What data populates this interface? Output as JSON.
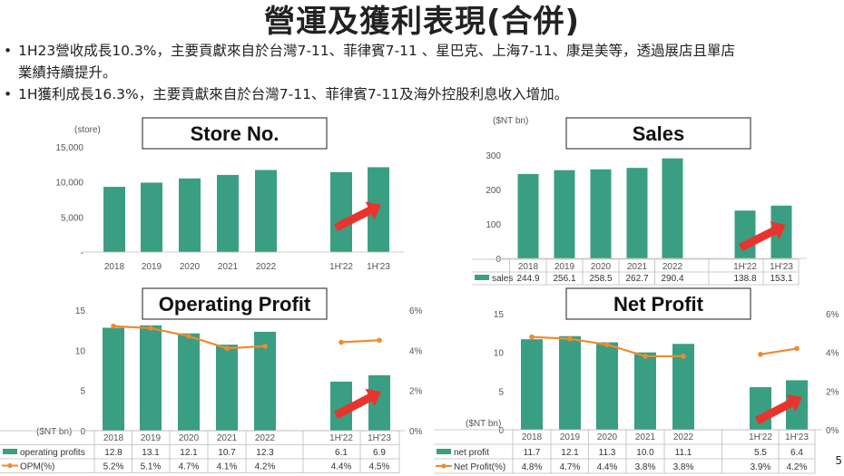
{
  "title": "營運及獲利表現(合併)",
  "bullets": [
    {
      "line1": "1H23營收成長10.3%，主要貢獻來自於台灣7-11、菲律賓7-11 、星巴克、上海7-11、康是美等，透過展店且單店",
      "line2": "業績持續提升。"
    },
    {
      "line1": "1H獲利成長16.3%，主要貢獻來自於台灣7-11、菲律賓7-11及海外控股利息收入增加。",
      "line2": ""
    }
  ],
  "page_number": "5",
  "colors": {
    "bar": "#3a9e83",
    "line": "#f08a30",
    "arrow": "#e8342c"
  },
  "chart_data": [
    {
      "id": "store",
      "type": "bar",
      "title": "Store No.",
      "unit_label": "(store)",
      "categories": [
        "2018",
        "2019",
        "2020",
        "2021",
        "2022",
        "1H'22",
        "1H'23"
      ],
      "values": [
        9300,
        9900,
        10500,
        11000,
        11700,
        11400,
        12100
      ],
      "ylim": [
        0,
        15000
      ],
      "y_ticks": [
        {
          "v": 15000,
          "label": "15,000"
        },
        {
          "v": 10000,
          "label": "10,000"
        },
        {
          "v": 5000,
          "label": "5,000"
        },
        {
          "v": 0,
          "label": "-"
        }
      ]
    },
    {
      "id": "sales",
      "type": "bar",
      "title": "Sales",
      "unit_label": "($NT bn)",
      "categories": [
        "2018",
        "2019",
        "2020",
        "2021",
        "2022",
        "1H'22",
        "1H'23"
      ],
      "values": [
        244.9,
        256.1,
        258.5,
        262.7,
        290.4,
        138.8,
        153.1
      ],
      "ylim": [
        0,
        300
      ],
      "y_ticks": [
        {
          "v": 300,
          "label": "300"
        },
        {
          "v": 200,
          "label": "200"
        },
        {
          "v": 100,
          "label": "100"
        },
        {
          "v": 0,
          "label": "0"
        }
      ],
      "table": [
        {
          "name": "sales",
          "values": [
            "244.9",
            "256.1",
            "258.5",
            "262.7",
            "290.4",
            "138.8",
            "153.1"
          ]
        }
      ]
    },
    {
      "id": "op",
      "type": "bar+line",
      "title": "Operating Profit",
      "unit_label": "($NT bn)",
      "categories": [
        "2018",
        "2019",
        "2020",
        "2021",
        "2022",
        "1H'22",
        "1H'23"
      ],
      "values": [
        12.8,
        13.1,
        12.1,
        10.7,
        12.3,
        6.1,
        6.9
      ],
      "ylim": [
        0,
        15
      ],
      "y_ticks": [
        {
          "v": 15,
          "label": "15"
        },
        {
          "v": 10,
          "label": "10"
        },
        {
          "v": 5,
          "label": "5"
        },
        {
          "v": 0,
          "label": "0"
        }
      ],
      "line_values": [
        5.2,
        5.1,
        4.7,
        4.1,
        4.2,
        4.4,
        4.5
      ],
      "y2lim": [
        0,
        6
      ],
      "y2_ticks": [
        {
          "v": 6,
          "label": "6%"
        },
        {
          "v": 4,
          "label": "4%"
        },
        {
          "v": 2,
          "label": "2%"
        },
        {
          "v": 0,
          "label": "0%"
        }
      ],
      "table": [
        {
          "name": "operating profits",
          "values": [
            "12.8",
            "13.1",
            "12.1",
            "10.7",
            "12.3",
            "6.1",
            "6.9"
          ]
        },
        {
          "name": "OPM(%)",
          "values": [
            "5.2%",
            "5.1%",
            "4.7%",
            "4.1%",
            "4.2%",
            "4.4%",
            "4.5%"
          ]
        }
      ]
    },
    {
      "id": "np",
      "type": "bar+line",
      "title": "Net Profit",
      "unit_label": "($NT bn)",
      "categories": [
        "2018",
        "2019",
        "2020",
        "2021",
        "2022",
        "1H'22",
        "1H'23"
      ],
      "values": [
        11.7,
        12.1,
        11.3,
        10.0,
        11.1,
        5.5,
        6.4
      ],
      "ylim": [
        0,
        15
      ],
      "y_ticks": [
        {
          "v": 15,
          "label": "15"
        },
        {
          "v": 10,
          "label": "10"
        },
        {
          "v": 5,
          "label": "5"
        },
        {
          "v": 0,
          "label": "0"
        }
      ],
      "line_values": [
        4.8,
        4.7,
        4.4,
        3.8,
        3.8,
        3.9,
        4.2
      ],
      "y2lim": [
        0,
        6
      ],
      "y2_ticks": [
        {
          "v": 6,
          "label": "6%"
        },
        {
          "v": 4,
          "label": "4%"
        },
        {
          "v": 2,
          "label": "2%"
        },
        {
          "v": 0,
          "label": "0%"
        }
      ],
      "table": [
        {
          "name": "net profit",
          "values": [
            "11.7",
            "12.1",
            "11.3",
            "10.0",
            "11.1",
            "5.5",
            "6.4"
          ]
        },
        {
          "name": "Net Profit(%)",
          "values": [
            "4.8%",
            "4.7%",
            "4.4%",
            "3.8%",
            "3.8%",
            "3.9%",
            "4.2%"
          ]
        }
      ]
    }
  ]
}
